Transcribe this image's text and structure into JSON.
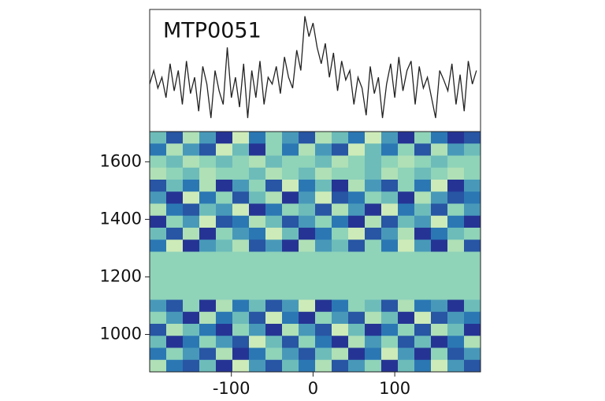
{
  "chart_data": [
    {
      "type": "line",
      "annotation": "MTP0051",
      "color": "#222222",
      "x": [
        -200,
        -195,
        -190,
        -185,
        -180,
        -175,
        -170,
        -165,
        -160,
        -155,
        -150,
        -145,
        -140,
        -135,
        -130,
        -125,
        -120,
        -115,
        -110,
        -105,
        -100,
        -95,
        -90,
        -85,
        -80,
        -75,
        -70,
        -65,
        -60,
        -55,
        -50,
        -45,
        -40,
        -35,
        -30,
        -25,
        -20,
        -15,
        -10,
        -5,
        0,
        5,
        10,
        15,
        20,
        25,
        30,
        35,
        40,
        45,
        50,
        55,
        60,
        65,
        70,
        75,
        80,
        85,
        90,
        95,
        100,
        105,
        110,
        115,
        120,
        125,
        130,
        135,
        140,
        145,
        150,
        155,
        160,
        165,
        170,
        175,
        180,
        185,
        190,
        195,
        200
      ],
      "values": [
        0.45,
        0.55,
        0.42,
        0.5,
        0.35,
        0.6,
        0.4,
        0.55,
        0.3,
        0.62,
        0.38,
        0.5,
        0.25,
        0.58,
        0.45,
        0.2,
        0.55,
        0.4,
        0.3,
        0.72,
        0.35,
        0.5,
        0.28,
        0.6,
        0.2,
        0.55,
        0.35,
        0.62,
        0.3,
        0.5,
        0.45,
        0.58,
        0.38,
        0.65,
        0.5,
        0.42,
        0.7,
        0.55,
        0.95,
        0.8,
        0.9,
        0.72,
        0.6,
        0.75,
        0.5,
        0.68,
        0.4,
        0.62,
        0.48,
        0.55,
        0.3,
        0.5,
        0.42,
        0.22,
        0.58,
        0.38,
        0.5,
        0.2,
        0.45,
        0.6,
        0.35,
        0.65,
        0.4,
        0.55,
        0.62,
        0.3,
        0.58,
        0.42,
        0.5,
        0.35,
        0.2,
        0.55,
        0.48,
        0.4,
        0.6,
        0.3,
        0.52,
        0.25,
        0.62,
        0.45,
        0.55
      ],
      "xlim": [
        -200,
        205
      ],
      "ylim": [
        0.1,
        1.0
      ]
    },
    {
      "type": "heatmap",
      "xlim": [
        -200,
        205
      ],
      "ylim": [
        870,
        1705
      ],
      "xticks": [
        -100,
        0,
        100
      ],
      "yticks": [
        1000,
        1200,
        1400,
        1600
      ],
      "zlim": [
        0,
        9
      ],
      "colormap": [
        "#ffffd9",
        "#c7e9b4",
        "#7fcdbb",
        "#2c7fb8",
        "#253494"
      ],
      "z": [
        [
          5,
          8,
          3,
          6,
          9,
          2,
          7,
          4,
          6,
          8,
          3,
          5,
          7,
          2,
          6,
          9,
          4,
          7,
          9,
          8
        ],
        [
          7,
          3,
          6,
          8,
          2,
          5,
          9,
          4,
          7,
          3,
          6,
          8,
          2,
          5,
          7,
          4,
          8,
          3,
          6,
          5
        ],
        [
          4,
          5,
          3,
          4,
          5,
          4,
          3,
          5,
          4,
          4,
          5,
          3,
          4,
          5,
          4,
          3,
          4,
          5,
          4,
          4
        ],
        [
          3,
          4,
          5,
          3,
          4,
          4,
          5,
          3,
          4,
          5,
          3,
          4,
          4,
          5,
          3,
          4,
          5,
          4,
          3,
          4
        ],
        [
          8,
          5,
          7,
          3,
          9,
          6,
          4,
          8,
          2,
          7,
          5,
          9,
          3,
          6,
          8,
          4,
          7,
          2,
          9,
          6
        ],
        [
          6,
          9,
          2,
          7,
          4,
          8,
          5,
          3,
          9,
          6,
          2,
          8,
          7,
          4,
          5,
          9,
          3,
          6,
          8,
          7
        ],
        [
          3,
          7,
          8,
          5,
          6,
          2,
          9,
          7,
          4,
          5,
          8,
          3,
          6,
          9,
          2,
          7,
          5,
          8,
          4,
          6
        ],
        [
          9,
          4,
          6,
          2,
          8,
          7,
          3,
          5,
          8,
          6,
          4,
          7,
          9,
          3,
          8,
          5,
          6,
          2,
          7,
          9
        ],
        [
          5,
          8,
          3,
          9,
          4,
          6,
          7,
          2,
          5,
          9,
          7,
          4,
          2,
          8,
          6,
          3,
          9,
          7,
          5,
          4
        ],
        [
          7,
          2,
          9,
          6,
          5,
          3,
          8,
          6,
          9,
          3,
          6,
          5,
          8,
          4,
          7,
          2,
          6,
          9,
          3,
          8
        ],
        [
          4,
          4,
          4,
          4,
          4,
          4,
          4,
          4,
          4,
          4,
          4,
          4,
          4,
          4,
          4,
          4,
          4,
          4,
          4,
          4
        ],
        [
          4,
          4,
          4,
          4,
          4,
          4,
          4,
          4,
          4,
          4,
          4,
          4,
          4,
          4,
          4,
          4,
          4,
          4,
          4,
          4
        ],
        [
          4,
          4,
          4,
          4,
          4,
          4,
          4,
          4,
          4,
          4,
          4,
          4,
          4,
          4,
          4,
          4,
          4,
          4,
          4,
          4
        ],
        [
          4,
          4,
          4,
          4,
          4,
          4,
          4,
          4,
          4,
          4,
          4,
          4,
          4,
          4,
          4,
          4,
          4,
          4,
          4,
          4
        ],
        [
          6,
          8,
          4,
          9,
          3,
          7,
          5,
          8,
          6,
          2,
          9,
          7,
          4,
          5,
          8,
          3,
          7,
          6,
          9,
          5
        ],
        [
          4,
          6,
          9,
          3,
          7,
          5,
          8,
          2,
          7,
          9,
          4,
          6,
          8,
          3,
          5,
          9,
          2,
          8,
          6,
          7
        ],
        [
          8,
          3,
          5,
          7,
          9,
          4,
          6,
          9,
          3,
          6,
          8,
          2,
          5,
          9,
          7,
          4,
          8,
          3,
          5,
          9
        ],
        [
          5,
          9,
          7,
          4,
          6,
          8,
          2,
          5,
          8,
          4,
          7,
          9,
          3,
          6,
          4,
          8,
          5,
          9,
          7,
          3
        ],
        [
          7,
          4,
          6,
          8,
          3,
          9,
          7,
          4,
          6,
          8,
          5,
          3,
          9,
          7,
          2,
          6,
          9,
          4,
          8,
          6
        ],
        [
          3,
          7,
          8,
          5,
          9,
          2,
          6,
          8,
          5,
          7,
          3,
          8,
          6,
          4,
          9,
          5,
          7,
          2,
          6,
          8
        ]
      ]
    }
  ]
}
